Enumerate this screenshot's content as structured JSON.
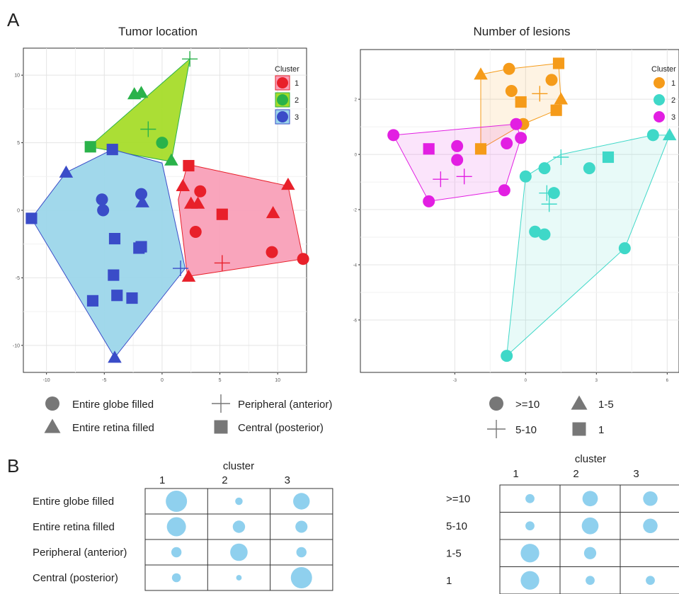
{
  "panel_labels": {
    "a": "A",
    "b": "B"
  },
  "colors": {
    "cluster1": "#e8202a",
    "cluster2": "#2ab24a",
    "cluster3": "#3a4cc8",
    "hull1": "#f9a0b8",
    "hull2": "#a6dc2a",
    "hull3": "#9cd6ea",
    "lesion1": "#f59b1a",
    "lesion2": "#3fd8c8",
    "lesion3": "#e21fe2",
    "bubble": "#8fd0ee",
    "shape_key": "#777777"
  },
  "chart_data": [
    {
      "type": "scatter",
      "title": "Tumor location",
      "xlim": [
        -12,
        12.5
      ],
      "ylim": [
        -12,
        12
      ],
      "x_ticks": [
        -10,
        -5,
        0,
        5,
        10
      ],
      "y_ticks": [
        -10,
        -5,
        0,
        5,
        10
      ],
      "grid": true,
      "legend": {
        "title": "Cluster",
        "placement": "top-right",
        "entries": [
          "1",
          "2",
          "3"
        ]
      },
      "shape_legend": [
        {
          "shape": "circle",
          "label": "Entire globe filled"
        },
        {
          "shape": "plus",
          "label": "Peripheral (anterior)"
        },
        {
          "shape": "triangle",
          "label": "Entire retina  filled"
        },
        {
          "shape": "square",
          "label": "Central (posterior)"
        }
      ],
      "hulls": [
        {
          "cluster": 1,
          "points": [
            [
              2.2,
              3.4
            ],
            [
              10.9,
              1.8
            ],
            [
              12.2,
              -3.6
            ],
            [
              2.2,
              -4.9
            ],
            [
              1.4,
              0.8
            ]
          ]
        },
        {
          "cluster": 2,
          "points": [
            [
              2.4,
              11.2
            ],
            [
              0.8,
              3.6
            ],
            [
              -6.3,
              4.7
            ]
          ]
        },
        {
          "cluster": 3,
          "points": [
            [
              -4.3,
              4.5
            ],
            [
              0,
              3.5
            ],
            [
              2,
              -4.3
            ],
            [
              -4.1,
              -10.9
            ],
            [
              -11.3,
              -0.6
            ],
            [
              -8.3,
              2.8
            ]
          ]
        }
      ],
      "points": [
        {
          "x": 2.3,
          "y": 3.3,
          "c": 1,
          "s": "square"
        },
        {
          "x": 1.8,
          "y": 1.8,
          "c": 1,
          "s": "triangle"
        },
        {
          "x": 2.5,
          "y": 0.5,
          "c": 1,
          "s": "triangle"
        },
        {
          "x": 3.1,
          "y": 0.5,
          "c": 1,
          "s": "triangle"
        },
        {
          "x": 3.3,
          "y": 1.4,
          "c": 1,
          "s": "circle"
        },
        {
          "x": 5.2,
          "y": -0.3,
          "c": 1,
          "s": "square"
        },
        {
          "x": 2.9,
          "y": -1.6,
          "c": 1,
          "s": "circle"
        },
        {
          "x": 10.9,
          "y": 1.9,
          "c": 1,
          "s": "triangle"
        },
        {
          "x": 9.6,
          "y": -0.2,
          "c": 1,
          "s": "triangle"
        },
        {
          "x": 9.5,
          "y": -3.1,
          "c": 1,
          "s": "circle"
        },
        {
          "x": 12.2,
          "y": -3.6,
          "c": 1,
          "s": "circle"
        },
        {
          "x": 2.3,
          "y": -4.9,
          "c": 1,
          "s": "triangle"
        },
        {
          "x": 5.2,
          "y": -3.9,
          "c": 1,
          "s": "plus"
        },
        {
          "x": 2.4,
          "y": 11.2,
          "c": 2,
          "s": "plus"
        },
        {
          "x": -2.4,
          "y": 8.6,
          "c": 2,
          "s": "triangle"
        },
        {
          "x": -1.8,
          "y": 8.7,
          "c": 2,
          "s": "triangle"
        },
        {
          "x": -1.2,
          "y": 6.0,
          "c": 2,
          "s": "plus"
        },
        {
          "x": 0.0,
          "y": 5.0,
          "c": 2,
          "s": "circle"
        },
        {
          "x": -6.2,
          "y": 4.7,
          "c": 2,
          "s": "square"
        },
        {
          "x": 0.8,
          "y": 3.7,
          "c": 2,
          "s": "triangle"
        },
        {
          "x": -4.3,
          "y": 4.5,
          "c": 3,
          "s": "square"
        },
        {
          "x": -8.3,
          "y": 2.8,
          "c": 3,
          "s": "triangle"
        },
        {
          "x": -1.8,
          "y": 1.2,
          "c": 3,
          "s": "circle"
        },
        {
          "x": -1.7,
          "y": 0.6,
          "c": 3,
          "s": "triangle"
        },
        {
          "x": -5.2,
          "y": 0.8,
          "c": 3,
          "s": "circle"
        },
        {
          "x": -5.1,
          "y": 0.0,
          "c": 3,
          "s": "circle"
        },
        {
          "x": -11.3,
          "y": -0.6,
          "c": 3,
          "s": "square"
        },
        {
          "x": -4.1,
          "y": -2.1,
          "c": 3,
          "s": "square"
        },
        {
          "x": -1.8,
          "y": -2.7,
          "c": 3,
          "s": "square"
        },
        {
          "x": -2.0,
          "y": -2.8,
          "c": 3,
          "s": "square"
        },
        {
          "x": -4.2,
          "y": -4.8,
          "c": 3,
          "s": "square"
        },
        {
          "x": -3.9,
          "y": -6.3,
          "c": 3,
          "s": "square"
        },
        {
          "x": -2.6,
          "y": -6.5,
          "c": 3,
          "s": "square"
        },
        {
          "x": -6.0,
          "y": -6.7,
          "c": 3,
          "s": "square"
        },
        {
          "x": 1.6,
          "y": -4.3,
          "c": 3,
          "s": "plus"
        },
        {
          "x": -4.1,
          "y": -10.9,
          "c": 3,
          "s": "triangle"
        }
      ]
    },
    {
      "type": "scatter",
      "title": "Number of lesions",
      "xlim": [
        -7.0,
        6.5
      ],
      "ylim": [
        -7.9,
        3.8
      ],
      "x_ticks": [
        -3,
        0,
        3,
        6
      ],
      "y_ticks": [
        -6,
        -4,
        -2,
        0,
        2
      ],
      "grid": true,
      "legend": {
        "title": "Cluster",
        "placement": "top-right",
        "entries": [
          "1",
          "2",
          "3"
        ]
      },
      "shape_legend": [
        {
          "shape": "circle",
          "label": ">=10"
        },
        {
          "shape": "triangle",
          "label": "1-5"
        },
        {
          "shape": "plus",
          "label": "5-10"
        },
        {
          "shape": "square",
          "label": "1"
        }
      ],
      "hulls": [
        {
          "cluster": 1,
          "points": [
            [
              -1.9,
              2.9
            ],
            [
              -0.7,
              3.1
            ],
            [
              1.4,
              3.3
            ],
            [
              1.5,
              1.9
            ],
            [
              1.3,
              1.6
            ],
            [
              -0.1,
              1.1
            ],
            [
              -1.9,
              0.2
            ]
          ]
        },
        {
          "cluster": 2,
          "points": [
            [
              1.5,
              0
            ],
            [
              5.4,
              0.7
            ],
            [
              6.1,
              0.7
            ],
            [
              4.2,
              -3.4
            ],
            [
              -0.8,
              -7.3
            ],
            [
              0,
              -0.8
            ]
          ]
        },
        {
          "cluster": 3,
          "points": [
            [
              -5.6,
              0.7
            ],
            [
              -0.4,
              1.1
            ],
            [
              -0.2,
              0.6
            ],
            [
              -0.9,
              -1.3
            ],
            [
              -4.1,
              -1.7
            ]
          ]
        }
      ],
      "points": [
        {
          "x": -1.9,
          "y": 2.9,
          "c": 1,
          "s": "triangle"
        },
        {
          "x": -0.7,
          "y": 3.1,
          "c": 1,
          "s": "circle"
        },
        {
          "x": 1.4,
          "y": 3.3,
          "c": 1,
          "s": "square"
        },
        {
          "x": 1.1,
          "y": 2.7,
          "c": 1,
          "s": "circle"
        },
        {
          "x": -0.6,
          "y": 2.3,
          "c": 1,
          "s": "circle"
        },
        {
          "x": 0.6,
          "y": 2.2,
          "c": 1,
          "s": "plus"
        },
        {
          "x": -0.2,
          "y": 1.9,
          "c": 1,
          "s": "square"
        },
        {
          "x": 1.5,
          "y": 2.0,
          "c": 1,
          "s": "triangle"
        },
        {
          "x": 1.3,
          "y": 1.6,
          "c": 1,
          "s": "square"
        },
        {
          "x": -0.1,
          "y": 1.1,
          "c": 1,
          "s": "circle"
        },
        {
          "x": -1.9,
          "y": 0.2,
          "c": 1,
          "s": "square"
        },
        {
          "x": -5.6,
          "y": 0.7,
          "c": 3,
          "s": "circle"
        },
        {
          "x": -4.1,
          "y": 0.2,
          "c": 3,
          "s": "square"
        },
        {
          "x": -2.9,
          "y": 0.3,
          "c": 3,
          "s": "circle"
        },
        {
          "x": -2.9,
          "y": -0.2,
          "c": 3,
          "s": "circle"
        },
        {
          "x": -0.8,
          "y": 0.4,
          "c": 3,
          "s": "circle"
        },
        {
          "x": -0.2,
          "y": 0.6,
          "c": 3,
          "s": "circle"
        },
        {
          "x": -0.4,
          "y": 1.1,
          "c": 3,
          "s": "circle"
        },
        {
          "x": -2.6,
          "y": -0.8,
          "c": 3,
          "s": "plus"
        },
        {
          "x": -3.6,
          "y": -0.9,
          "c": 3,
          "s": "plus"
        },
        {
          "x": -0.9,
          "y": -1.3,
          "c": 3,
          "s": "circle"
        },
        {
          "x": -4.1,
          "y": -1.7,
          "c": 3,
          "s": "circle"
        },
        {
          "x": 5.4,
          "y": 0.7,
          "c": 2,
          "s": "circle"
        },
        {
          "x": 6.1,
          "y": 0.7,
          "c": 2,
          "s": "triangle"
        },
        {
          "x": 3.5,
          "y": -0.1,
          "c": 2,
          "s": "square"
        },
        {
          "x": 1.5,
          "y": -0.1,
          "c": 2,
          "s": "plus"
        },
        {
          "x": 2.7,
          "y": -0.5,
          "c": 2,
          "s": "circle"
        },
        {
          "x": 0.8,
          "y": -0.5,
          "c": 2,
          "s": "circle"
        },
        {
          "x": 0.0,
          "y": -0.8,
          "c": 2,
          "s": "circle"
        },
        {
          "x": 0.9,
          "y": -1.4,
          "c": 2,
          "s": "plus"
        },
        {
          "x": 1.2,
          "y": -1.4,
          "c": 2,
          "s": "circle"
        },
        {
          "x": 1.0,
          "y": -1.8,
          "c": 2,
          "s": "plus"
        },
        {
          "x": 0.4,
          "y": -2.8,
          "c": 2,
          "s": "circle"
        },
        {
          "x": 0.8,
          "y": -2.9,
          "c": 2,
          "s": "circle"
        },
        {
          "x": 4.2,
          "y": -3.4,
          "c": 2,
          "s": "circle"
        },
        {
          "x": -0.8,
          "y": -7.3,
          "c": 2,
          "s": "circle"
        }
      ]
    },
    {
      "type": "table",
      "title": "cluster",
      "columns": [
        "1",
        "2",
        "3"
      ],
      "rows": [
        "Entire globe filled",
        "Entire retina  filled",
        "Peripheral (anterior)",
        "Central (posterior)"
      ],
      "values": [
        [
          1.0,
          0.35,
          0.78
        ],
        [
          0.9,
          0.58,
          0.57
        ],
        [
          0.48,
          0.82,
          0.48
        ],
        [
          0.42,
          0.26,
          1.0
        ]
      ]
    },
    {
      "type": "table",
      "title": "cluster",
      "columns": [
        "1",
        "2",
        "3"
      ],
      "rows": [
        ">=10",
        "5-10",
        "1-5",
        "1"
      ],
      "values": [
        [
          0.4,
          0.68,
          0.64
        ],
        [
          0.4,
          0.74,
          0.64
        ],
        [
          0.82,
          0.54,
          0
        ],
        [
          0.82,
          0.4,
          0.4
        ]
      ]
    }
  ]
}
